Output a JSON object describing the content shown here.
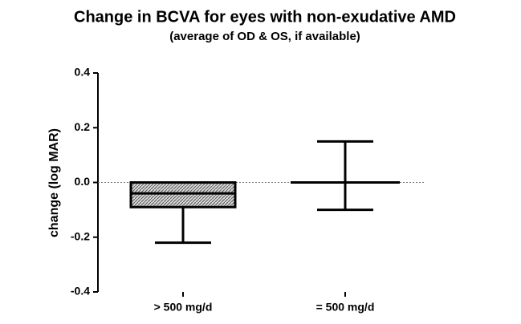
{
  "chart_data": {
    "type": "bar",
    "title": "Change in BCVA for eyes with non-exudative AMD",
    "subtitle": "(average of OD & OS, if available)",
    "y_label": "change (log MAR)",
    "categories": [
      "> 500 mg/d",
      "= 500 mg/d"
    ],
    "values": [
      -0.09,
      0
    ],
    "center_lines": [
      -0.04,
      0
    ],
    "error_low": [
      -0.22,
      -0.1
    ],
    "error_high": [
      null,
      0.15
    ],
    "color": "#888888",
    "ylim": [
      -0.4,
      0.4
    ],
    "yticks": [
      {
        "value": 0.4,
        "label": "0.4"
      },
      {
        "value": 0.2,
        "label": "0.2"
      },
      {
        "value": 0,
        "label": "0.0"
      },
      {
        "value": -0.2,
        "label": "-0.2"
      },
      {
        "value": -0.4,
        "label": "-0.4"
      }
    ]
  }
}
